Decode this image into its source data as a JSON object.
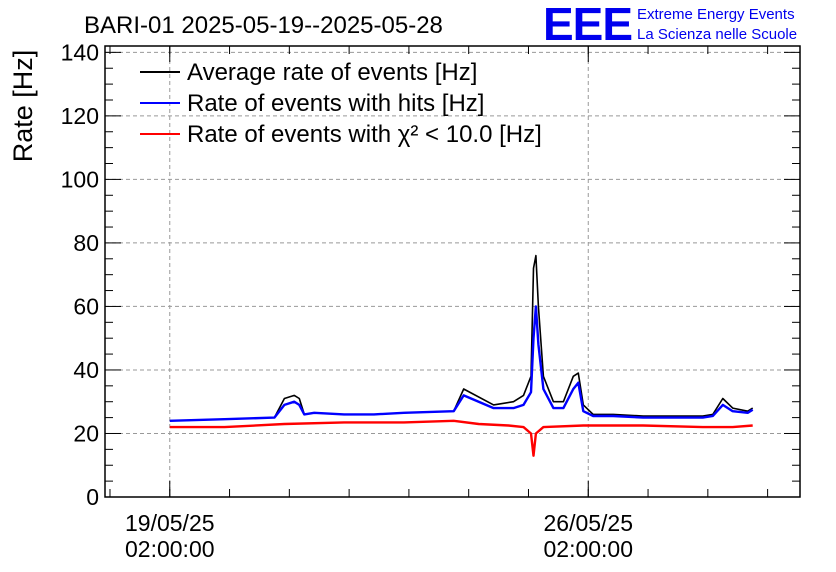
{
  "chart_data": {
    "type": "line",
    "title": "BARI-01 2025-05-19--2025-05-28",
    "ylabel": "Rate [Hz]",
    "xlabel": "",
    "ylim": [
      0,
      142
    ],
    "yticks": [
      0,
      20,
      40,
      60,
      80,
      100,
      120,
      140
    ],
    "xlim": [
      "2025-05-18T00:00:00",
      "2025-05-29T15:00:00"
    ],
    "xticks": [
      {
        "date": "2025-05-19T02:00:00",
        "line1": "19/05/25",
        "line2": "02:00:00"
      },
      {
        "date": "2025-05-26T02:00:00",
        "line1": "26/05/25",
        "line2": "02:00:00"
      }
    ],
    "grid": true,
    "legend_position": "top-left",
    "series": [
      {
        "name": "Average rate of events [Hz]",
        "color": "#000000",
        "x": [
          "2025-05-19T02:00",
          "2025-05-20T00:00",
          "2025-05-20T20:00",
          "2025-05-21T00:00",
          "2025-05-21T04:00",
          "2025-05-21T06:00",
          "2025-05-21T08:00",
          "2025-05-21T12:00",
          "2025-05-22T00:00",
          "2025-05-22T12:00",
          "2025-05-23T00:00",
          "2025-05-23T20:00",
          "2025-05-24T00:00",
          "2025-05-24T12:00",
          "2025-05-24T20:00",
          "2025-05-25T00:00",
          "2025-05-25T03:00",
          "2025-05-25T04:00",
          "2025-05-25T05:00",
          "2025-05-25T06:00",
          "2025-05-25T08:00",
          "2025-05-25T12:00",
          "2025-05-25T16:00",
          "2025-05-25T20:00",
          "2025-05-25T22:00",
          "2025-05-26T00:00",
          "2025-05-26T04:00",
          "2025-05-26T12:00",
          "2025-05-27T00:00",
          "2025-05-27T12:00",
          "2025-05-28T00:00",
          "2025-05-28T04:00",
          "2025-05-28T08:00",
          "2025-05-28T12:00",
          "2025-05-28T18:00",
          "2025-05-28T20:00"
        ],
        "y": [
          24,
          24.5,
          25,
          31,
          32,
          31,
          26,
          26.5,
          26,
          26,
          26.5,
          27,
          34,
          29,
          30,
          32,
          38,
          72,
          76,
          60,
          38,
          30,
          30,
          38,
          39,
          29,
          26,
          26,
          25.5,
          25.5,
          25.5,
          26,
          31,
          28,
          27,
          28
        ]
      },
      {
        "name": "Rate of events with hits [Hz]",
        "color": "#0000ff",
        "x": [
          "2025-05-19T02:00",
          "2025-05-20T00:00",
          "2025-05-20T20:00",
          "2025-05-21T00:00",
          "2025-05-21T04:00",
          "2025-05-21T06:00",
          "2025-05-21T08:00",
          "2025-05-21T12:00",
          "2025-05-22T00:00",
          "2025-05-22T12:00",
          "2025-05-23T00:00",
          "2025-05-23T20:00",
          "2025-05-24T00:00",
          "2025-05-24T12:00",
          "2025-05-24T20:00",
          "2025-05-25T00:00",
          "2025-05-25T03:00",
          "2025-05-25T04:00",
          "2025-05-25T05:00",
          "2025-05-25T06:00",
          "2025-05-25T08:00",
          "2025-05-25T12:00",
          "2025-05-25T16:00",
          "2025-05-25T20:00",
          "2025-05-25T22:00",
          "2025-05-26T00:00",
          "2025-05-26T04:00",
          "2025-05-26T12:00",
          "2025-05-27T00:00",
          "2025-05-27T12:00",
          "2025-05-28T00:00",
          "2025-05-28T04:00",
          "2025-05-28T08:00",
          "2025-05-28T12:00",
          "2025-05-28T18:00",
          "2025-05-28T20:00"
        ],
        "y": [
          24,
          24.5,
          25,
          29,
          30,
          29,
          26,
          26.5,
          26,
          26,
          26.5,
          27,
          32,
          28,
          28,
          29,
          33,
          50,
          60,
          48,
          34,
          28,
          28,
          34,
          36,
          27,
          25.5,
          25.5,
          25,
          25,
          25,
          25.5,
          29,
          27,
          26.5,
          27.5
        ]
      },
      {
        "name": "Rate of events with χ² < 10.0 [Hz]",
        "color": "#ff0000",
        "x": [
          "2025-05-19T02:00",
          "2025-05-20T00:00",
          "2025-05-21T00:00",
          "2025-05-22T00:00",
          "2025-05-23T00:00",
          "2025-05-23T20:00",
          "2025-05-24T06:00",
          "2025-05-24T18:00",
          "2025-05-25T00:00",
          "2025-05-25T03:00",
          "2025-05-25T04:00",
          "2025-05-25T05:00",
          "2025-05-25T08:00",
          "2025-05-26T00:00",
          "2025-05-27T00:00",
          "2025-05-28T00:00",
          "2025-05-28T12:00",
          "2025-05-28T20:00"
        ],
        "y": [
          22,
          22,
          23,
          23.5,
          23.5,
          24,
          23,
          22.5,
          22,
          20,
          13,
          20,
          22,
          22.5,
          22.5,
          22,
          22,
          22.5
        ]
      }
    ]
  },
  "brand": {
    "logo": "EEE",
    "line1": "Extreme Energy Events",
    "line2": "La Scienza nelle Scuole"
  }
}
